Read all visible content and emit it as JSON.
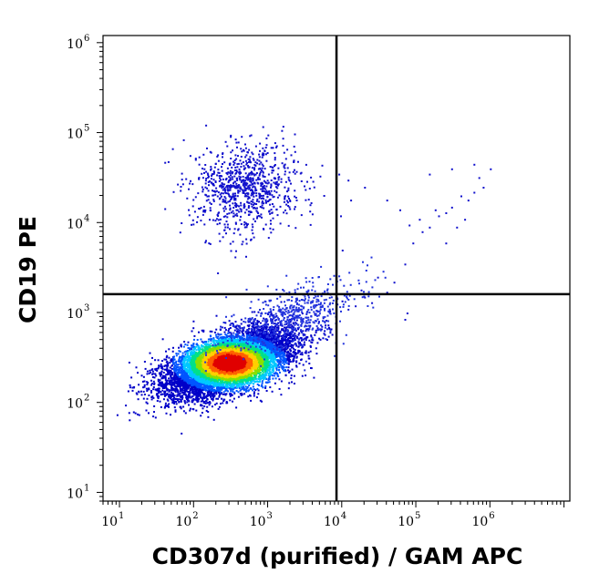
{
  "chart_data": {
    "type": "scatter",
    "subtype": "flow-cytometry density dot plot",
    "title": "",
    "xlabel": "CD307d (purified) / GAM APC",
    "ylabel": "CD19 PE",
    "xscale": "log",
    "yscale": "log",
    "xlim": [
      6,
      12000000
    ],
    "ylim": [
      8,
      1200000
    ],
    "x_ticks": [
      {
        "value": 10,
        "base": "10",
        "exp": "1"
      },
      {
        "value": 100,
        "base": "10",
        "exp": "2"
      },
      {
        "value": 1000,
        "base": "10",
        "exp": "3"
      },
      {
        "value": 10000,
        "base": "10",
        "exp": "4"
      },
      {
        "value": 100000,
        "base": "10",
        "exp": "5"
      },
      {
        "value": 1000000,
        "base": "10",
        "exp": "6"
      }
    ],
    "y_ticks": [
      {
        "value": 10,
        "base": "10",
        "exp": "1"
      },
      {
        "value": 100,
        "base": "10",
        "exp": "2"
      },
      {
        "value": 1000,
        "base": "10",
        "exp": "3"
      },
      {
        "value": 10000,
        "base": "10",
        "exp": "4"
      },
      {
        "value": 100000,
        "base": "10",
        "exp": "5"
      },
      {
        "value": 1000000,
        "base": "10",
        "exp": "6"
      }
    ],
    "quadrant_gates": {
      "x": 8500,
      "y": 1600
    },
    "populations": [
      {
        "center": [
          300,
          280
        ],
        "spread_decades": [
          0.42,
          0.18
        ],
        "correlation": 0.55,
        "events": 9000,
        "color": "density"
      },
      {
        "center": [
          500,
          25000
        ],
        "spread_decades": [
          0.35,
          0.25
        ],
        "correlation": 0.1,
        "events": 900,
        "color": "#1010cc"
      },
      {
        "center": [
          2000,
          900
        ],
        "spread_decades": [
          0.45,
          0.2
        ],
        "correlation": 0.6,
        "events": 600,
        "color": "#2233dd"
      }
    ],
    "sparse_events": [
      [
        30000,
        2500
      ],
      [
        50000,
        2200
      ],
      [
        70000,
        3500
      ],
      [
        90000,
        6000
      ],
      [
        120000,
        8000
      ],
      [
        150000,
        9000
      ],
      [
        200000,
        12000
      ],
      [
        300000,
        15000
      ],
      [
        400000,
        20000
      ],
      [
        600000,
        22000
      ],
      [
        800000,
        25000
      ],
      [
        1000000,
        40000
      ],
      [
        110000,
        11000
      ],
      [
        80000,
        9500
      ],
      [
        180000,
        14000
      ],
      [
        250000,
        13000
      ],
      [
        350000,
        9000
      ],
      [
        500000,
        18000
      ],
      [
        15000,
        1200
      ],
      [
        20000,
        1500
      ],
      [
        25000,
        1300
      ],
      [
        40000,
        1700
      ],
      [
        12000,
        1100
      ],
      [
        18000,
        1800
      ],
      [
        70000,
        850
      ],
      [
        75000,
        1000
      ],
      [
        12000,
        30000
      ],
      [
        20000,
        25000
      ],
      [
        40000,
        18000
      ],
      [
        150000,
        35000
      ],
      [
        300000,
        40000
      ],
      [
        700000,
        32000
      ],
      [
        13000,
        18000
      ],
      [
        9000,
        35000
      ],
      [
        9500,
        12000
      ],
      [
        10000,
        5000
      ],
      [
        250000,
        6000
      ],
      [
        450000,
        11000
      ],
      [
        60000,
        14000
      ],
      [
        600000,
        45000
      ]
    ],
    "density_colormap": [
      "#0000c8",
      "#0055ff",
      "#00c8ff",
      "#00e08a",
      "#8ae000",
      "#ffd000",
      "#ff6000",
      "#e00000"
    ],
    "grid": false,
    "legend": "none"
  }
}
